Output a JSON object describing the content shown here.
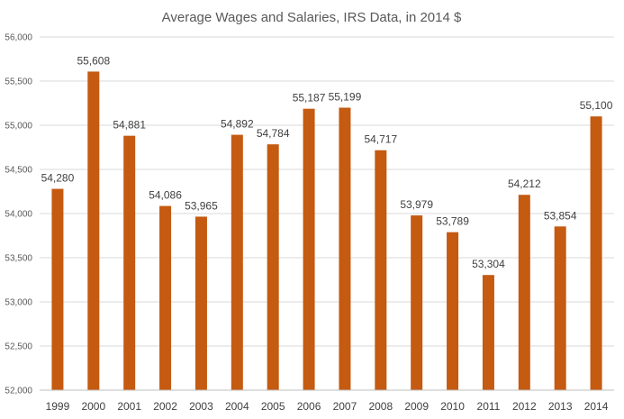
{
  "chart_data": {
    "type": "bar",
    "title": "Average Wages and Salaries, IRS Data, in 2014 $",
    "xlabel": "",
    "ylabel": "",
    "categories": [
      "1999",
      "2000",
      "2001",
      "2002",
      "2003",
      "2004",
      "2005",
      "2006",
      "2007",
      "2008",
      "2009",
      "2010",
      "2011",
      "2012",
      "2013",
      "2014"
    ],
    "values": [
      54280,
      55608,
      54881,
      54086,
      53965,
      54892,
      54784,
      55187,
      55199,
      54717,
      53979,
      53789,
      53304,
      54212,
      53854,
      55100
    ],
    "value_labels": [
      "54,280",
      "55,608",
      "54,881",
      "54,086",
      "53,965",
      "54,892",
      "54,784",
      "55,187",
      "55,199",
      "54,717",
      "53,979",
      "53,789",
      "53,304",
      "54,212",
      "53,854",
      "55,100"
    ],
    "ylim": [
      52000,
      56000
    ],
    "yticks": [
      52000,
      52500,
      53000,
      53500,
      54000,
      54500,
      55000,
      55500,
      56000
    ],
    "ytick_labels": [
      "52,000",
      "52,500",
      "53,000",
      "53,500",
      "54,000",
      "54,500",
      "55,000",
      "55,500",
      "56,000"
    ],
    "grid": true,
    "legend": "none",
    "bar_color": "#c55a11"
  }
}
